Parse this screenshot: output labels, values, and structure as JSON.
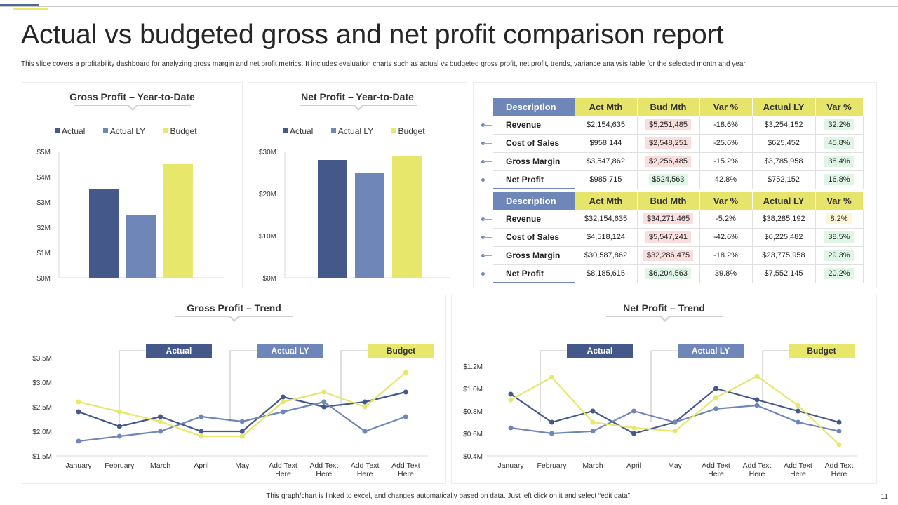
{
  "page": {
    "title": "Actual vs budgeted gross and net profit comparison report",
    "subtitle": "This slide covers a profitability dashboard for analyzing gross margin and net profit metrics. It includes evaluation charts such as actual vs budgeted gross profit, net profit, trends, variance analysis table for the selected month and year.",
    "footer": "This graph/chart is linked to excel, and changes automatically based on data. Just left click on it and select “edit data”.",
    "page_number": "11"
  },
  "colors": {
    "actual": "#44598a",
    "actual_ly": "#6f87b8",
    "budget": "#e6e76b"
  },
  "chart_data": [
    {
      "id": "gross-ytd",
      "type": "bar",
      "title": "Gross Profit – Year-to-Date",
      "legend": [
        "Actual",
        "Actual LY",
        "Budget"
      ],
      "values": [
        3.5,
        2.5,
        4.5
      ],
      "ylim": [
        0,
        5
      ],
      "yticks": [
        "$0M",
        "$1M",
        "$2M",
        "$3M",
        "$4M",
        "$5M"
      ]
    },
    {
      "id": "net-ytd",
      "type": "bar",
      "title": "Net Profit – Year-to-Date",
      "legend": [
        "Actual",
        "Actual LY",
        "Budget"
      ],
      "values": [
        28,
        25,
        29
      ],
      "ylim": [
        0,
        30
      ],
      "yticks": [
        "$0M",
        "$10M",
        "$20M",
        "$30M"
      ]
    },
    {
      "id": "gross-trend",
      "type": "line",
      "title": "Gross Profit – Trend",
      "categories": [
        "January",
        "February",
        "March",
        "April",
        "May",
        "Add Text Here",
        "Add Text Here",
        "Add Text Here",
        "Add Text Here"
      ],
      "series": [
        {
          "name": "Actual",
          "values": [
            2.4,
            2.1,
            2.3,
            2.0,
            2.0,
            2.7,
            2.5,
            2.6,
            2.8
          ]
        },
        {
          "name": "Actual LY",
          "values": [
            1.8,
            1.9,
            2.0,
            2.3,
            2.2,
            2.4,
            2.6,
            2.0,
            2.3
          ]
        },
        {
          "name": "Budget",
          "values": [
            2.6,
            2.4,
            2.2,
            1.9,
            1.9,
            2.6,
            2.8,
            2.5,
            3.2
          ]
        }
      ],
      "ylim": [
        1.5,
        3.5
      ],
      "yticks": [
        "$1.5M",
        "$2.0M",
        "$2.5M",
        "$3.0M",
        "$3.5M"
      ]
    },
    {
      "id": "net-trend",
      "type": "line",
      "title": "Net Profit – Trend",
      "categories": [
        "January",
        "February",
        "March",
        "April",
        "May",
        "Add Text Here",
        "Add Text Here",
        "Add Text Here",
        "Add Text Here"
      ],
      "series": [
        {
          "name": "Actual",
          "values": [
            0.95,
            0.7,
            0.8,
            0.6,
            0.7,
            1.0,
            0.9,
            0.8,
            0.7
          ]
        },
        {
          "name": "Actual LY",
          "values": [
            0.65,
            0.6,
            0.62,
            0.8,
            0.7,
            0.82,
            0.85,
            0.7,
            0.62
          ]
        },
        {
          "name": "Budget",
          "values": [
            0.9,
            1.1,
            0.7,
            0.65,
            0.62,
            0.92,
            1.11,
            0.85,
            0.5
          ]
        }
      ],
      "ylim": [
        0.4,
        1.2
      ],
      "yticks": [
        "$0.4M",
        "$0.6M",
        "$0.8M",
        "$1.0M",
        "$1.2M"
      ]
    }
  ],
  "variance": {
    "headers": [
      "Description",
      "Act Mth",
      "Bud Mth",
      "Var %",
      "Actual LY",
      "Var %"
    ],
    "month": [
      {
        "desc": "Revenue",
        "act": "$2,154,635",
        "bud": "$5,251,485",
        "bud_hl": "red",
        "var": "-18.6%",
        "ly": "$3,254,152",
        "var2": "32.2%",
        "var2_hl": "green"
      },
      {
        "desc": "Cost of Sales",
        "act": "$958,144",
        "bud": "$2,548,251",
        "bud_hl": "red",
        "var": "-25.6%",
        "ly": "$625,452",
        "var2": "45.8%",
        "var2_hl": "green"
      },
      {
        "desc": "Gross Margin",
        "act": "$3,547,862",
        "bud": "$2,256,485",
        "bud_hl": "red",
        "var": "-15.2%",
        "ly": "$3,785,958",
        "var2": "38.4%",
        "var2_hl": "green"
      },
      {
        "desc": "Net Profit",
        "act": "$985,715",
        "bud": "$524,563",
        "bud_hl": "green",
        "var": "42.8%",
        "ly": "$752,152",
        "var2": "16.8%",
        "var2_hl": "green"
      }
    ],
    "ytd": [
      {
        "desc": "Revenue",
        "act": "$32,154,635",
        "bud": "$34,271,465",
        "bud_hl": "red",
        "var": "-5.2%",
        "ly": "$38,285,192",
        "var2": "8.2%",
        "var2_hl": "yellow"
      },
      {
        "desc": "Cost of Sales",
        "act": "$4,518,124",
        "bud": "$5,547,241",
        "bud_hl": "red",
        "var": "-42.6%",
        "ly": "$6,225,482",
        "var2": "38.5%",
        "var2_hl": "green"
      },
      {
        "desc": "Gross Margin",
        "act": "$30,587,862",
        "bud": "$32,286,475",
        "bud_hl": "red",
        "var": "-18.2%",
        "ly": "$23,775,958",
        "var2": "29.3%",
        "var2_hl": "green"
      },
      {
        "desc": "Net Profit",
        "act": "$8,185,615",
        "bud": "$6,204,563",
        "bud_hl": "green",
        "var": "39.8%",
        "ly": "$7,552,145",
        "var2": "20.2%",
        "var2_hl": "green"
      }
    ]
  }
}
